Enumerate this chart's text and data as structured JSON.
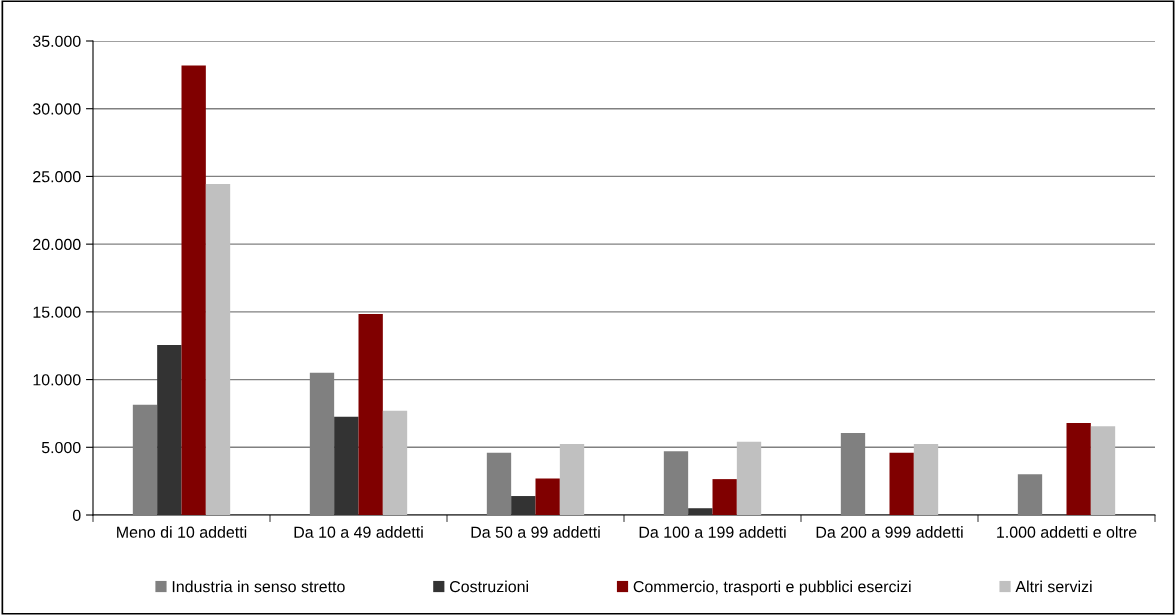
{
  "chart_data": {
    "type": "bar",
    "categories": [
      "Meno di 10 addetti",
      "Da 10 a 49 addetti",
      "Da 50 a 99 addetti",
      "Da 100 a 199 addetti",
      "Da 200 a 999 addetti",
      "1.000 addetti e oltre"
    ],
    "series": [
      {
        "name": "Industria in senso stretto",
        "color": "#808080",
        "values": [
          8150,
          10500,
          4600,
          4700,
          6050,
          3000
        ]
      },
      {
        "name": "Costruzioni",
        "color": "#333333",
        "values": [
          12550,
          7250,
          1400,
          500,
          null,
          null
        ]
      },
      {
        "name": "Commercio, trasporti e pubblici esercizi",
        "color": "#800000",
        "values": [
          33200,
          14850,
          2700,
          2650,
          4600,
          6800
        ]
      },
      {
        "name": "Altri servizi",
        "color": "#c0c0c0",
        "values": [
          24450,
          7700,
          5250,
          5400,
          5250,
          6550
        ]
      }
    ],
    "ylim": [
      0,
      35000
    ],
    "yticks": [
      {
        "value": 0,
        "label": "0"
      },
      {
        "value": 5000,
        "label": "5.000"
      },
      {
        "value": 10000,
        "label": "10.000"
      },
      {
        "value": 15000,
        "label": "15.000"
      },
      {
        "value": 20000,
        "label": "20.000"
      },
      {
        "value": 25000,
        "label": "25.000"
      },
      {
        "value": 30000,
        "label": "30.000"
      },
      {
        "value": 35000,
        "label": "35.000"
      }
    ],
    "grid": "y",
    "legend": "bottom"
  }
}
